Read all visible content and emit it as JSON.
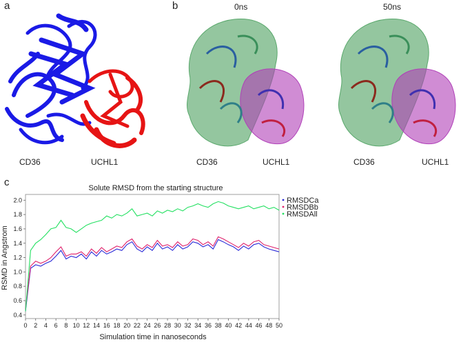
{
  "panels": {
    "a": {
      "label": "a",
      "captions": [
        "CD36",
        "UCHL1"
      ],
      "colors": {
        "cd36": "#1a1ae6",
        "uchl1": "#e61414"
      }
    },
    "b": {
      "label": "b",
      "times": [
        "0ns",
        "50ns"
      ],
      "captions": [
        "CD36",
        "UCHL1",
        "CD36",
        "UCHL1"
      ],
      "colors": {
        "surface_green": "#5aa86c",
        "surface_purple": "#b040b8"
      }
    },
    "c": {
      "label": "c"
    }
  },
  "chart_data": {
    "type": "line",
    "title": "Solute RMSD from the starting structure",
    "xlabel": "Simulation time in nanoseconds",
    "ylabel": "RSMD in Angstrom",
    "xlim": [
      0,
      50
    ],
    "ylim": [
      0.35,
      2.08
    ],
    "xticks": [
      "0",
      "2",
      "4",
      "6",
      "8",
      "10",
      "12",
      "14",
      "16",
      "18",
      "20",
      "22",
      "24",
      "26",
      "28",
      "30",
      "32",
      "34",
      "36",
      "38",
      "40",
      "42",
      "44",
      "46",
      "48",
      "50"
    ],
    "yticks": [
      "0.4",
      "0.6",
      "0.8",
      "1.0",
      "1.2",
      "1.4",
      "1.6",
      "1.8",
      "2.0"
    ],
    "legend_position": "top-right",
    "x": [
      0,
      1,
      2,
      3,
      4,
      5,
      6,
      7,
      8,
      9,
      10,
      11,
      12,
      13,
      14,
      15,
      16,
      17,
      18,
      19,
      20,
      21,
      22,
      23,
      24,
      25,
      26,
      27,
      28,
      29,
      30,
      31,
      32,
      33,
      34,
      35,
      36,
      37,
      38,
      39,
      40,
      41,
      42,
      43,
      44,
      45,
      46,
      47,
      48,
      49,
      50
    ],
    "series": [
      {
        "name": "RMSDCa",
        "color": "#2a2ad8",
        "values": [
          0.45,
          1.05,
          1.1,
          1.08,
          1.12,
          1.15,
          1.22,
          1.3,
          1.18,
          1.22,
          1.2,
          1.25,
          1.18,
          1.28,
          1.22,
          1.3,
          1.25,
          1.28,
          1.32,
          1.3,
          1.38,
          1.42,
          1.32,
          1.28,
          1.35,
          1.3,
          1.4,
          1.32,
          1.35,
          1.3,
          1.38,
          1.32,
          1.35,
          1.42,
          1.4,
          1.35,
          1.38,
          1.32,
          1.45,
          1.42,
          1.38,
          1.35,
          1.3,
          1.36,
          1.32,
          1.38,
          1.4,
          1.35,
          1.32,
          1.3,
          1.28
        ]
      },
      {
        "name": "RMSDBb",
        "color": "#e0206a",
        "values": [
          0.48,
          1.08,
          1.15,
          1.12,
          1.15,
          1.2,
          1.28,
          1.35,
          1.22,
          1.25,
          1.25,
          1.28,
          1.22,
          1.32,
          1.26,
          1.34,
          1.28,
          1.32,
          1.36,
          1.34,
          1.42,
          1.46,
          1.36,
          1.32,
          1.38,
          1.34,
          1.44,
          1.36,
          1.38,
          1.34,
          1.42,
          1.36,
          1.38,
          1.46,
          1.44,
          1.38,
          1.42,
          1.36,
          1.49,
          1.46,
          1.42,
          1.38,
          1.34,
          1.4,
          1.36,
          1.42,
          1.44,
          1.38,
          1.36,
          1.34,
          1.32
        ]
      },
      {
        "name": "RMSDAll",
        "color": "#22e060",
        "values": [
          0.45,
          1.3,
          1.4,
          1.45,
          1.52,
          1.6,
          1.62,
          1.72,
          1.62,
          1.6,
          1.55,
          1.6,
          1.65,
          1.68,
          1.7,
          1.72,
          1.78,
          1.75,
          1.8,
          1.78,
          1.82,
          1.88,
          1.78,
          1.8,
          1.82,
          1.78,
          1.85,
          1.82,
          1.86,
          1.84,
          1.88,
          1.85,
          1.9,
          1.92,
          1.95,
          1.92,
          1.9,
          1.95,
          1.98,
          1.96,
          1.92,
          1.9,
          1.88,
          1.9,
          1.92,
          1.88,
          1.9,
          1.92,
          1.88,
          1.9,
          1.86
        ]
      }
    ]
  }
}
